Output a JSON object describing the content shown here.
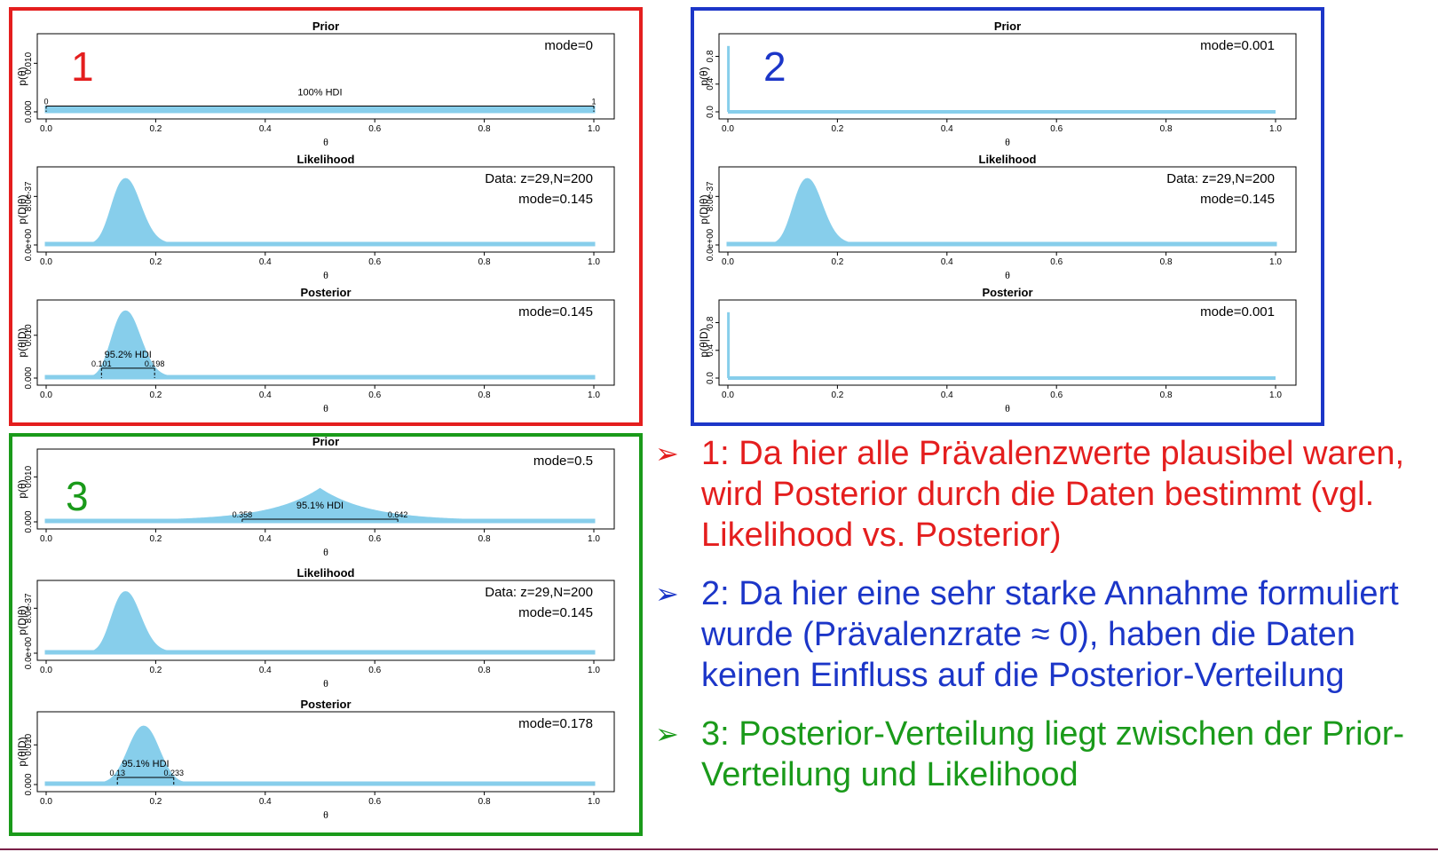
{
  "colors": {
    "fill": "#87ceeb",
    "red": "#e41e1e",
    "blue": "#1c36c8",
    "green": "#1a9a1a",
    "axis": "#000000"
  },
  "groups": [
    {
      "id": "1",
      "number": "1",
      "color": "#e41e1e"
    },
    {
      "id": "2",
      "number": "2",
      "color": "#1c36c8"
    },
    {
      "id": "3",
      "number": "3",
      "color": "#1a9a1a"
    }
  ],
  "chart_data": [
    {
      "group": "1",
      "panel": "prior",
      "type": "area",
      "title": "Prior",
      "xlabel": "θ",
      "ylabel": "p(θ)",
      "xlim": [
        0,
        1
      ],
      "ylim": [
        0,
        0.015
      ],
      "x_ticks": [
        "0.0",
        "0.2",
        "0.4",
        "0.6",
        "0.8",
        "1.0"
      ],
      "y_ticks": [
        {
          "v": 0,
          "label": "0.000"
        },
        {
          "v": 0.01,
          "label": "0.010"
        }
      ],
      "curve": {
        "kind": "uniform",
        "height": 0.001
      },
      "annotations": [
        "mode=0"
      ],
      "hdi": {
        "label": "100% HDI",
        "low": 0,
        "high": 1,
        "low_label": "0",
        "high_label": "1",
        "y": 0.0012
      }
    },
    {
      "group": "1",
      "panel": "likelihood",
      "type": "area",
      "title": "Likelihood",
      "xlabel": "θ",
      "ylabel": "p(D|θ)",
      "xlim": [
        0,
        1
      ],
      "ylim": [
        0,
        1.2e-36
      ],
      "x_ticks": [
        "0.0",
        "0.2",
        "0.4",
        "0.6",
        "0.8",
        "1.0"
      ],
      "y_ticks": [
        {
          "v": 0,
          "label": "0.0e+00"
        },
        {
          "v": 8e-37,
          "label": "8.0e-37"
        }
      ],
      "curve": {
        "kind": "beta",
        "z": 29,
        "N": 200,
        "peak": 1.08e-36
      },
      "annotations": [
        "Data: z=29,N=200",
        "mode=0.145"
      ]
    },
    {
      "group": "1",
      "panel": "posterior",
      "type": "area",
      "title": "Posterior",
      "xlabel": "θ",
      "ylabel": "p(θ|D)",
      "xlim": [
        0,
        1
      ],
      "ylim": [
        0,
        0.017
      ],
      "x_ticks": [
        "0.0",
        "0.2",
        "0.4",
        "0.6",
        "0.8",
        "1.0"
      ],
      "y_ticks": [
        {
          "v": 0,
          "label": "0.000"
        },
        {
          "v": 0.01,
          "label": "0.010"
        }
      ],
      "curve": {
        "kind": "beta",
        "z": 29,
        "N": 200,
        "peak": 0.0155
      },
      "annotations": [
        "mode=0.145"
      ],
      "hdi": {
        "label": "95.2% HDI",
        "low": 0.101,
        "high": 0.198,
        "low_label": "0.101",
        "high_label": "0.198",
        "y": 0.0023
      }
    },
    {
      "group": "2",
      "panel": "prior",
      "type": "area",
      "title": "Prior",
      "xlabel": "θ",
      "ylabel": "p(θ)",
      "xlim": [
        0,
        1
      ],
      "ylim": [
        0,
        1.05
      ],
      "x_ticks": [
        "0.0",
        "0.2",
        "0.4",
        "0.6",
        "0.8",
        "1.0"
      ],
      "y_ticks": [
        {
          "v": 0,
          "label": "0.0"
        },
        {
          "v": 0.4,
          "label": "0.4"
        },
        {
          "v": 0.8,
          "label": "0.8"
        }
      ],
      "curve": {
        "kind": "spike",
        "x": 0.001,
        "peak": 0.95
      },
      "annotations": [
        "mode=0.001"
      ]
    },
    {
      "group": "2",
      "panel": "likelihood",
      "type": "area",
      "title": "Likelihood",
      "xlabel": "θ",
      "ylabel": "p(D|θ)",
      "xlim": [
        0,
        1
      ],
      "ylim": [
        0,
        1.2e-36
      ],
      "x_ticks": [
        "0.0",
        "0.2",
        "0.4",
        "0.6",
        "0.8",
        "1.0"
      ],
      "y_ticks": [
        {
          "v": 0,
          "label": "0.0e+00"
        },
        {
          "v": 8e-37,
          "label": "8.0e-37"
        }
      ],
      "curve": {
        "kind": "beta",
        "z": 29,
        "N": 200,
        "peak": 1.08e-36
      },
      "annotations": [
        "Data: z=29,N=200",
        "mode=0.145"
      ]
    },
    {
      "group": "2",
      "panel": "posterior",
      "type": "area",
      "title": "Posterior",
      "xlabel": "θ",
      "ylabel": "p(θ|D)",
      "xlim": [
        0,
        1
      ],
      "ylim": [
        0,
        1.05
      ],
      "x_ticks": [
        "0.0",
        "0.2",
        "0.4",
        "0.6",
        "0.8",
        "1.0"
      ],
      "y_ticks": [
        {
          "v": 0,
          "label": "0.0"
        },
        {
          "v": 0.4,
          "label": "0.4"
        },
        {
          "v": 0.8,
          "label": "0.8"
        }
      ],
      "curve": {
        "kind": "spike",
        "x": 0.001,
        "peak": 0.95
      },
      "annotations": [
        "mode=0.001"
      ]
    },
    {
      "group": "3",
      "panel": "prior",
      "type": "area",
      "title": "Prior",
      "xlabel": "θ",
      "ylabel": "p(θ)",
      "xlim": [
        0,
        1
      ],
      "ylim": [
        0,
        0.015
      ],
      "x_ticks": [
        "0.0",
        "0.2",
        "0.4",
        "0.6",
        "0.8",
        "1.0"
      ],
      "y_ticks": [
        {
          "v": 0,
          "label": "0.000"
        },
        {
          "v": 0.01,
          "label": "0.010"
        }
      ],
      "curve": {
        "kind": "triangle",
        "x": 0.5,
        "peak": 0.0072,
        "scale": 0.09
      },
      "annotations": [
        "mode=0.5"
      ],
      "hdi": {
        "label": "95.1% HDI",
        "low": 0.358,
        "high": 0.642,
        "low_label": "0.358",
        "high_label": "0.642",
        "y": 0.0006
      }
    },
    {
      "group": "3",
      "panel": "likelihood",
      "type": "area",
      "title": "Likelihood",
      "xlabel": "θ",
      "ylabel": "p(D|θ)",
      "xlim": [
        0,
        1
      ],
      "ylim": [
        0,
        1.2e-36
      ],
      "x_ticks": [
        "0.0",
        "0.2",
        "0.4",
        "0.6",
        "0.8",
        "1.0"
      ],
      "y_ticks": [
        {
          "v": 0,
          "label": "0.0e+00"
        },
        {
          "v": 8e-37,
          "label": "8.0e-37"
        }
      ],
      "curve": {
        "kind": "beta",
        "z": 29,
        "N": 200,
        "peak": 1.08e-36
      },
      "annotations": [
        "Data: z=29,N=200",
        "mode=0.145"
      ]
    },
    {
      "group": "3",
      "panel": "posterior",
      "type": "area",
      "title": "Posterior",
      "xlabel": "θ",
      "ylabel": "p(θ|D)",
      "xlim": [
        0,
        1
      ],
      "ylim": [
        0,
        0.017
      ],
      "x_ticks": [
        "0.0",
        "0.2",
        "0.4",
        "0.6",
        "0.8",
        "1.0"
      ],
      "y_ticks": [
        {
          "v": 0,
          "label": "0.000"
        },
        {
          "v": 0.01,
          "label": "0.010"
        }
      ],
      "curve": {
        "kind": "gauss",
        "x": 0.178,
        "sigma": 0.027,
        "peak": 0.0145
      },
      "annotations": [
        "mode=0.178"
      ],
      "hdi": {
        "label": "95.1% HDI",
        "low": 0.13,
        "high": 0.233,
        "low_label": "0.13",
        "high_label": "0.233",
        "y": 0.0018
      }
    }
  ],
  "bullets": [
    {
      "marker": "➢",
      "color": "#e41e1e",
      "text": "1: Da hier alle Prävalenzwerte plausibel waren, wird Posterior durch die Daten bestimmt (vgl. Likelihood vs. Posterior)"
    },
    {
      "marker": "➢",
      "color": "#1c36c8",
      "text": "2: Da hier eine sehr starke Annahme formuliert wurde (Prävalenzrate ≈ 0), haben die Daten keinen Einfluss auf die Posterior-Verteilung"
    },
    {
      "marker": "➢",
      "color": "#1a9a1a",
      "text": "3: Posterior-Verteilung liegt zwischen der Prior-Verteilung und Likelihood"
    }
  ]
}
